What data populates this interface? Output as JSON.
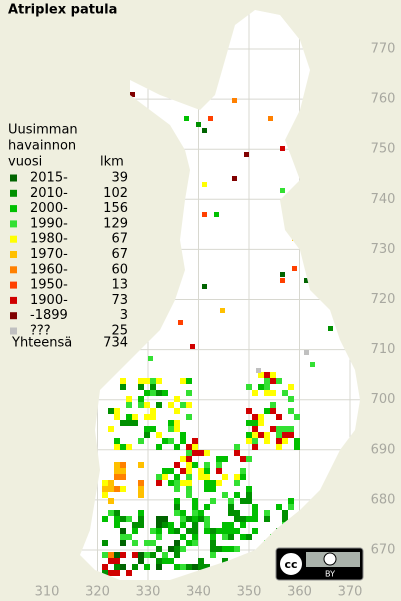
{
  "title": "Atriplex patula",
  "legend": {
    "heading": [
      "Uusimman",
      "havainnon",
      "vuosi"
    ],
    "count_heading": "lkm",
    "items": [
      {
        "label": "2015-",
        "count": 39,
        "color": "#006400"
      },
      {
        "label": "2010-",
        "count": 102,
        "color": "#009000"
      },
      {
        "label": "2000-",
        "count": 156,
        "color": "#00c000"
      },
      {
        "label": "1990-",
        "count": 129,
        "color": "#33e033"
      },
      {
        "label": "1980-",
        "count": 67,
        "color": "#ffff00"
      },
      {
        "label": "1970-",
        "count": 67,
        "color": "#ffc000"
      },
      {
        "label": "1960-",
        "count": 60,
        "color": "#ff8000"
      },
      {
        "label": "1950-",
        "count": 13,
        "color": "#ff4000"
      },
      {
        "label": "1900-",
        "count": 73,
        "color": "#d00000"
      },
      {
        "label": "-1899",
        "count": 3,
        "color": "#800000"
      },
      {
        "label": "???",
        "count": 25,
        "color": "#c0c0c0"
      }
    ],
    "total_label": "Yhteensä",
    "total": 734
  },
  "grid": {
    "xticks": [
      310,
      320,
      330,
      340,
      350,
      360,
      370
    ],
    "yticks": [
      670,
      680,
      690,
      700,
      710,
      720,
      730,
      740,
      750,
      760,
      770
    ]
  },
  "license_badge": {
    "symbol": "cc",
    "label": "BY"
  }
}
